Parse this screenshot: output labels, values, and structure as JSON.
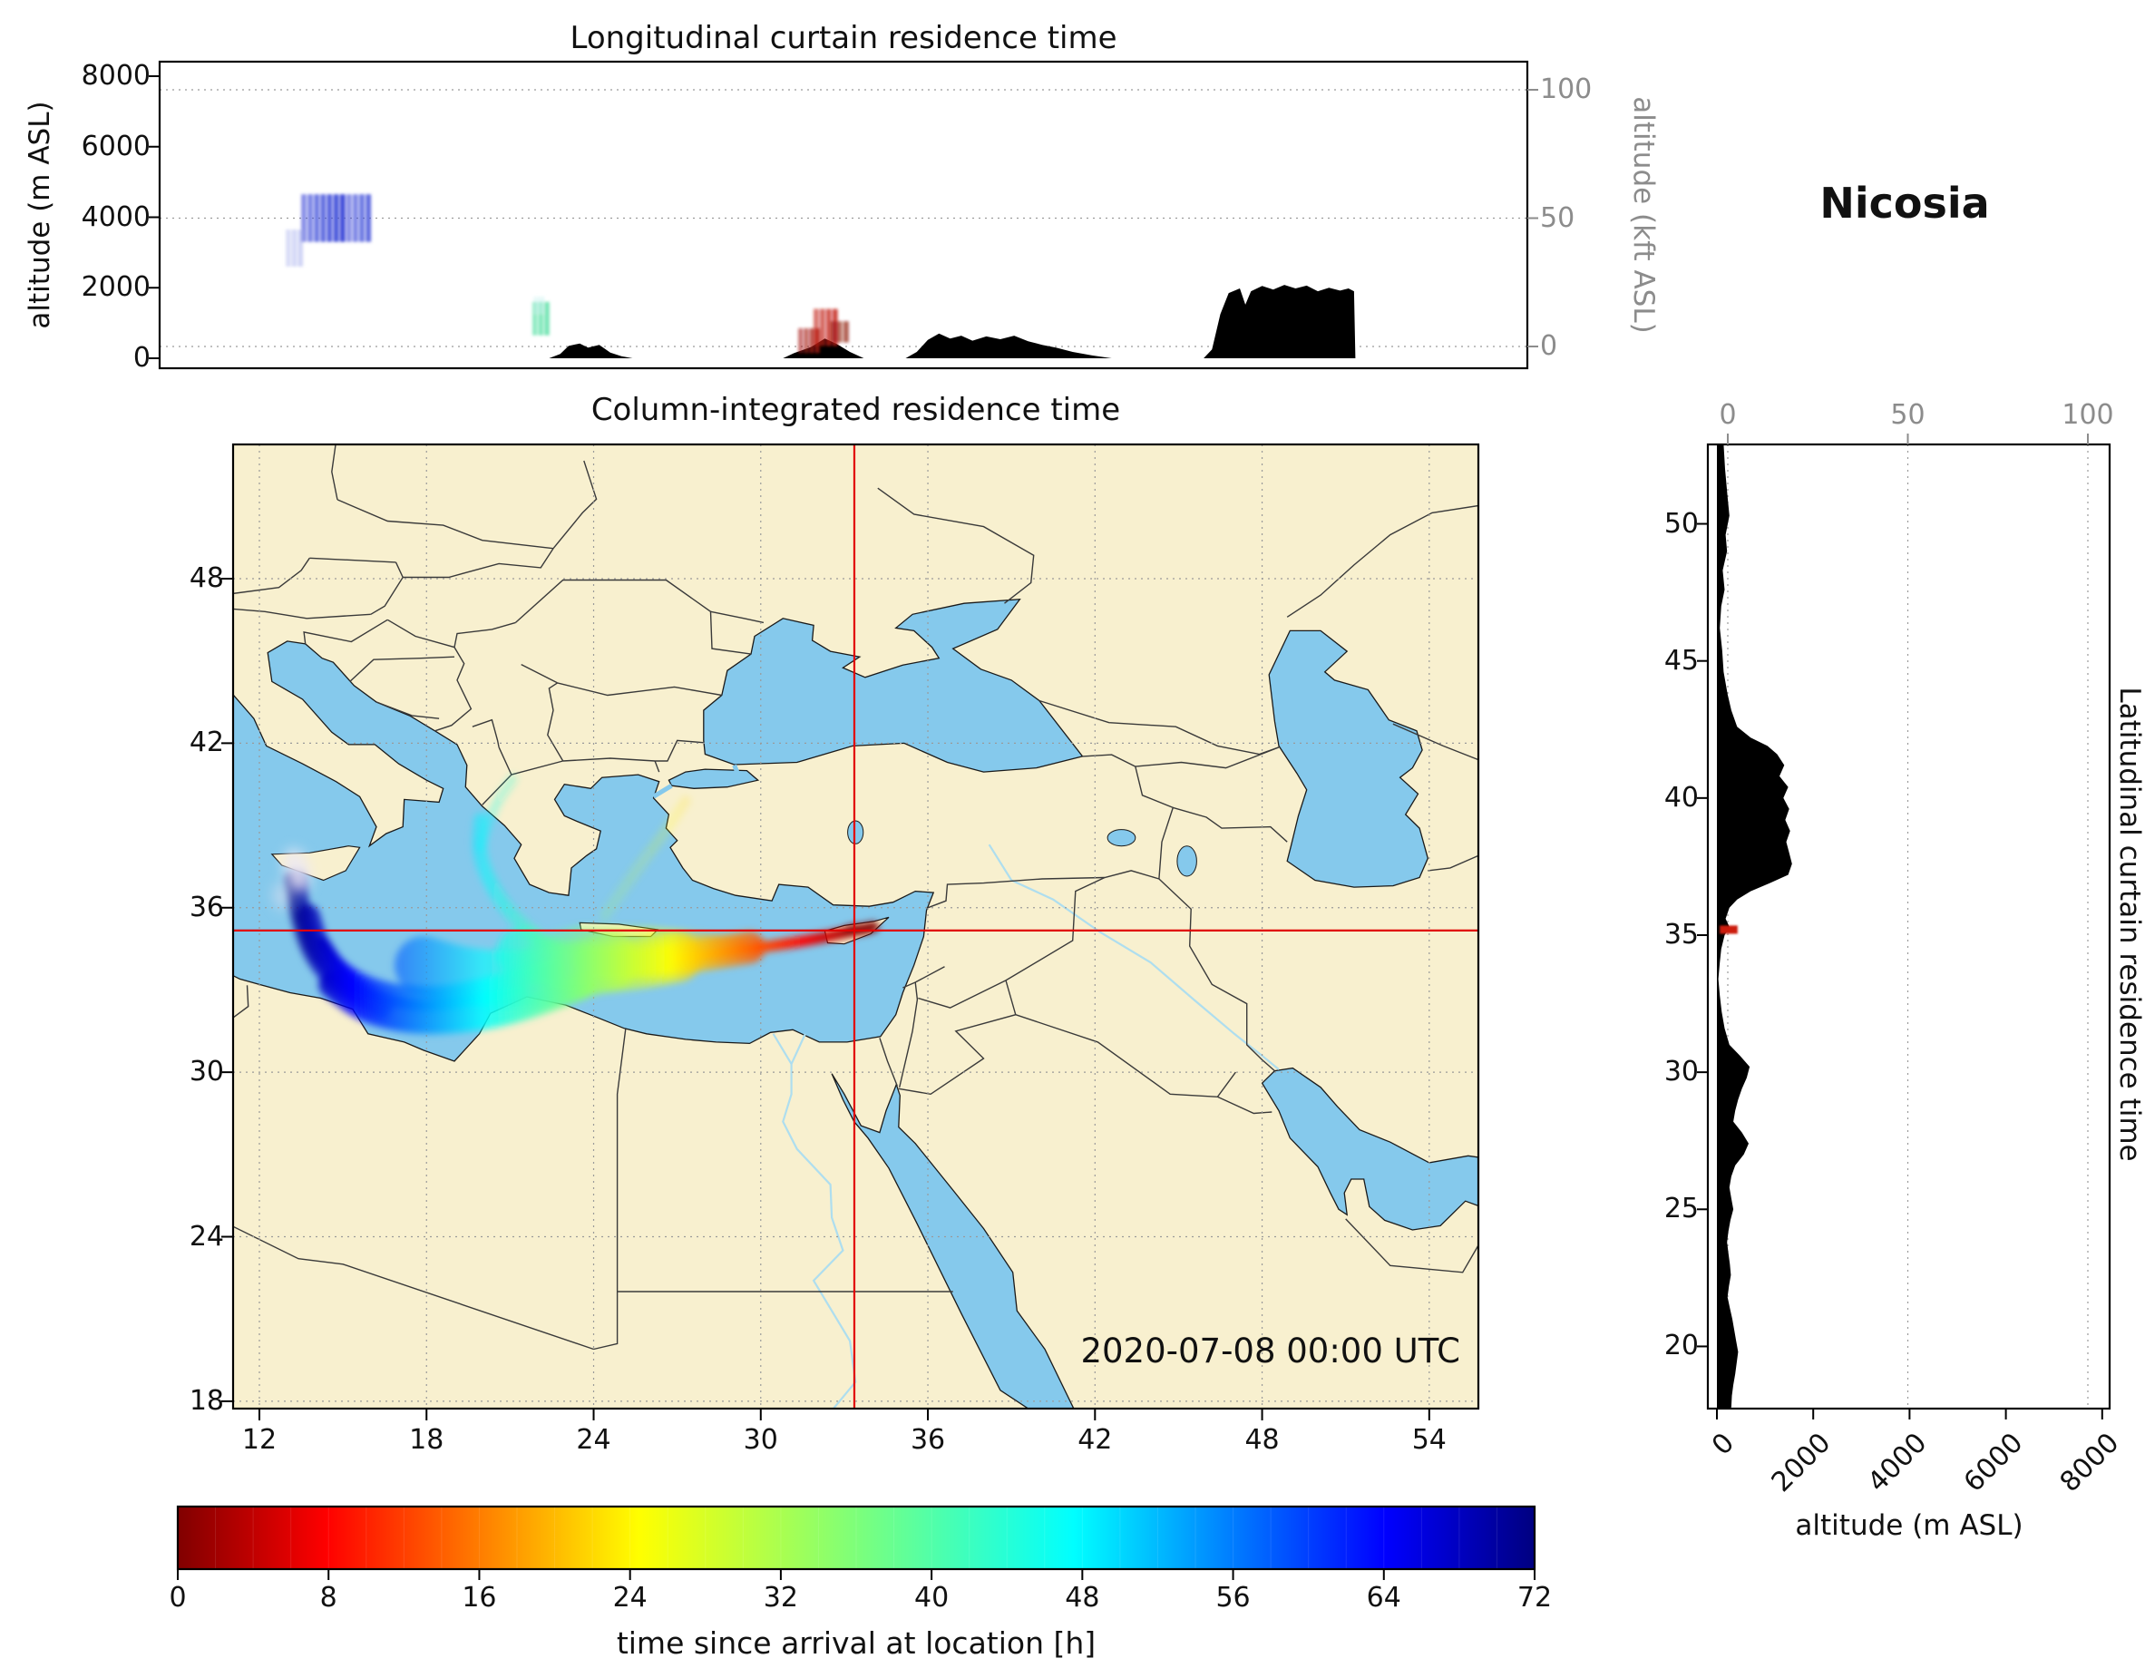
{
  "figure": {
    "station": "Nicosia",
    "timestamp": "2020-07-08 00:00 UTC"
  },
  "panels": {
    "longitudinal": {
      "title": "Longitudinal curtain residence time",
      "ylabel_left": "altitude (m ASL)",
      "ylabel_right": "altitude (kft ASL)",
      "yticks_left": [
        0,
        2000,
        4000,
        6000,
        8000
      ],
      "yticks_right": [
        0,
        50,
        100
      ]
    },
    "map": {
      "title": "Column-integrated residence time",
      "xticks": [
        12,
        18,
        24,
        30,
        36,
        42,
        48,
        54
      ],
      "yticks": [
        18,
        24,
        30,
        36,
        42,
        48
      ]
    },
    "latitudinal": {
      "title": "Latitudinal curtain residence time",
      "xlabel_bottom": "altitude (m ASL)",
      "xticks_top": [
        0,
        50,
        100
      ],
      "xticks_bottom": [
        0,
        2000,
        4000,
        6000,
        8000
      ],
      "yticks": [
        20,
        25,
        30,
        35,
        40,
        45,
        50
      ]
    },
    "colorbar": {
      "label": "time since arrival at location [h]",
      "ticks": [
        0,
        8,
        16,
        24,
        32,
        40,
        48,
        56,
        64,
        72
      ]
    }
  },
  "chart_data": [
    {
      "type": "heatmap",
      "name": "longitudinal_curtain",
      "title": "Longitudinal curtain residence time",
      "x_axis": {
        "quantity": "longitude_deg_east",
        "range": [
          8.4,
          57.5
        ]
      },
      "y_axis_left": {
        "label": "altitude (m ASL)",
        "ticks": [
          0,
          2000,
          4000,
          6000,
          8000
        ]
      },
      "y_axis_right": {
        "label": "altitude (kft ASL)",
        "ticks": [
          0,
          50,
          100
        ]
      },
      "terrain_profile": [
        [
          8.4,
          0
        ],
        [
          22.4,
          0
        ],
        [
          22.8,
          120
        ],
        [
          23.1,
          350
        ],
        [
          23.5,
          420
        ],
        [
          23.8,
          300
        ],
        [
          24.2,
          380
        ],
        [
          24.6,
          160
        ],
        [
          25.0,
          60
        ],
        [
          25.4,
          0
        ],
        [
          30.8,
          0
        ],
        [
          31.2,
          150
        ],
        [
          31.8,
          320
        ],
        [
          32.3,
          560
        ],
        [
          32.7,
          420
        ],
        [
          33.2,
          180
        ],
        [
          33.7,
          0
        ],
        [
          35.2,
          0
        ],
        [
          35.6,
          180
        ],
        [
          36.0,
          520
        ],
        [
          36.4,
          700
        ],
        [
          36.8,
          560
        ],
        [
          37.2,
          640
        ],
        [
          37.6,
          500
        ],
        [
          38.1,
          620
        ],
        [
          38.6,
          540
        ],
        [
          39.1,
          640
        ],
        [
          39.6,
          480
        ],
        [
          40.1,
          380
        ],
        [
          40.6,
          300
        ],
        [
          41.2,
          180
        ],
        [
          41.9,
          80
        ],
        [
          42.6,
          0
        ],
        [
          45.9,
          0
        ],
        [
          46.2,
          250
        ],
        [
          46.5,
          1250
        ],
        [
          46.8,
          1850
        ],
        [
          47.2,
          1980
        ],
        [
          47.4,
          1520
        ],
        [
          47.6,
          1900
        ],
        [
          48.0,
          2050
        ],
        [
          48.4,
          1950
        ],
        [
          48.8,
          2080
        ],
        [
          49.2,
          1980
        ],
        [
          49.6,
          2060
        ],
        [
          50.0,
          1900
        ],
        [
          50.4,
          2000
        ],
        [
          50.8,
          1920
        ],
        [
          51.1,
          1980
        ],
        [
          51.3,
          1900
        ],
        [
          51.35,
          0
        ],
        [
          57.5,
          0
        ]
      ],
      "residence_patches": [
        {
          "lon": [
            13.5,
            16.05
          ],
          "alt_m": [
            3300,
            4650
          ],
          "time_since_arrival_h": 66,
          "color": "#3f4cd9",
          "opacity": 1
        },
        {
          "lon": [
            12.95,
            13.6
          ],
          "alt_m": [
            2600,
            3650
          ],
          "time_since_arrival_h": 71,
          "color": "#97a0e8",
          "opacity": 0.6
        },
        {
          "lon": [
            21.8,
            22.45
          ],
          "alt_m": [
            650,
            1600
          ],
          "time_since_arrival_h": 44,
          "color": "#4ade9e",
          "opacity": 1
        },
        {
          "lon": [
            21.85,
            22.25
          ],
          "alt_m": [
            1250,
            1750
          ],
          "time_since_arrival_h": 40,
          "color": "#c9f2ef",
          "opacity": 0.75
        },
        {
          "lon": [
            31.35,
            32.15
          ],
          "alt_m": [
            150,
            850
          ],
          "time_since_arrival_h": 2,
          "color": "#a7170b",
          "opacity": 1
        },
        {
          "lon": [
            31.9,
            32.8
          ],
          "alt_m": [
            350,
            1400
          ],
          "time_since_arrival_h": 4,
          "color": "#c11b0c",
          "opacity": 1
        },
        {
          "lon": [
            32.5,
            33.2
          ],
          "alt_m": [
            450,
            1050
          ],
          "time_since_arrival_h": 1,
          "color": "#8c0f06",
          "opacity": 0.9
        }
      ]
    },
    {
      "type": "map",
      "name": "column_integrated",
      "title": "Column-integrated residence time",
      "timestamp": "2020-07-08 00:00 UTC",
      "lon_range": [
        11.06,
        55.76
      ],
      "lat_range": [
        17.73,
        52.9
      ],
      "lon_ticks": [
        12,
        18,
        24,
        30,
        36,
        42,
        48,
        54
      ],
      "lat_ticks": [
        18,
        24,
        30,
        36,
        42,
        48
      ],
      "receptor": {
        "name": "Nicosia",
        "lon": 33.36,
        "lat": 35.17
      },
      "plume": {
        "gradient_lon_time": {
          "lon_at_0h": 33.8,
          "lon_at_72h": 13.0
        },
        "body_polygon": [
          [
            29.5,
            34.9
          ],
          [
            26.0,
            35.3
          ],
          [
            23.5,
            35.35
          ],
          [
            21.8,
            34.9
          ],
          [
            21.2,
            33.9
          ],
          [
            22.5,
            33.1
          ],
          [
            25.0,
            33.3
          ],
          [
            27.5,
            33.9
          ],
          [
            29.5,
            34.4
          ]
        ],
        "filaments": [
          {
            "points": [
              [
                34.05,
                35.3
              ],
              [
                33.3,
                35.15
              ],
              [
                32.2,
                34.9
              ],
              [
                31.0,
                34.7
              ],
              [
                29.6,
                34.5
              ],
              [
                28.2,
                34.3
              ],
              [
                27.0,
                34.15
              ]
            ],
            "width_deg": 0.38,
            "opacity": 1
          },
          {
            "points": [
              [
                29.6,
                34.55
              ],
              [
                28.0,
                34.3
              ],
              [
                26.4,
                34.05
              ],
              [
                25.0,
                33.95
              ],
              [
                23.8,
                34.05
              ]
            ],
            "width_deg": 1.15,
            "opacity": 0.8
          },
          {
            "points": [
              [
                27.0,
                34.2
              ],
              [
                25.4,
                33.9
              ],
              [
                23.8,
                33.75
              ],
              [
                22.4,
                33.95
              ],
              [
                21.4,
                34.35
              ]
            ],
            "width_deg": 1.8,
            "opacity": 0.65
          },
          {
            "points": [
              [
                24.6,
                34.05
              ],
              [
                23.0,
                33.6
              ],
              [
                21.2,
                33.35
              ],
              [
                19.4,
                33.45
              ],
              [
                17.9,
                33.9
              ]
            ],
            "width_deg": 2.1,
            "opacity": 0.6
          },
          {
            "points": [
              [
                23.6,
                33.15
              ],
              [
                21.6,
                32.35
              ],
              [
                19.4,
                31.9
              ],
              [
                17.4,
                31.85
              ],
              [
                15.7,
                32.3
              ],
              [
                14.6,
                33.2
              ]
            ],
            "width_deg": 0.95,
            "opacity": 0.85
          },
          {
            "points": [
              [
                22.6,
                33.75
              ],
              [
                20.2,
                32.95
              ],
              [
                17.7,
                32.6
              ],
              [
                15.5,
                33.1
              ],
              [
                14.15,
                34.3
              ],
              [
                13.75,
                35.7
              ]
            ],
            "width_deg": 0.85,
            "opacity": 0.8
          },
          {
            "points": [
              [
                16.4,
                32.35
              ],
              [
                14.9,
                33.1
              ],
              [
                13.9,
                34.3
              ],
              [
                13.45,
                35.8
              ],
              [
                13.3,
                37.0
              ]
            ],
            "width_deg": 0.75,
            "opacity": 0.75
          },
          {
            "points": [
              [
                22.8,
                34.35
              ],
              [
                21.4,
                35.3
              ],
              [
                20.4,
                36.6
              ],
              [
                19.85,
                38.0
              ],
              [
                19.95,
                39.2
              ]
            ],
            "width_deg": 0.5,
            "opacity": 0.5
          },
          {
            "points": [
              [
                19.95,
                38.2
              ],
              [
                20.35,
                39.6
              ],
              [
                21.1,
                40.7
              ]
            ],
            "width_deg": 0.32,
            "opacity": 0.3
          },
          {
            "points": [
              [
                24.4,
                35.7
              ],
              [
                25.4,
                37.2
              ],
              [
                26.6,
                38.8
              ],
              [
                27.3,
                39.9
              ]
            ],
            "width_deg": 0.38,
            "opacity": 0.18
          },
          {
            "points": [
              [
                21.4,
                33.0
              ],
              [
                19.2,
                32.45
              ],
              [
                17.0,
                32.45
              ],
              [
                15.25,
                33.3
              ],
              [
                14.3,
                34.75
              ]
            ],
            "width_deg": 0.42,
            "opacity": 0.9
          }
        ],
        "overflow_blobs": [
          {
            "lon": 13.35,
            "lat": 37.35,
            "rx": 0.45,
            "ry": 0.8,
            "rot": -15,
            "color": "#ece9f5",
            "opacity": 0.85
          },
          {
            "lon": 12.8,
            "lat": 36.4,
            "rx": 0.3,
            "ry": 0.5,
            "rot": -10,
            "color": "#e4e0f0",
            "opacity": 0.55
          }
        ],
        "source_blob": {
          "lon": 33.5,
          "lat": 35.2,
          "rx": 0.55,
          "ry": 0.2,
          "color": "#8b0000"
        }
      }
    },
    {
      "type": "heatmap",
      "name": "latitudinal_curtain",
      "title": "Latitudinal curtain residence time",
      "x_axis_bottom": {
        "label": "altitude (m ASL)",
        "ticks": [
          0,
          2000,
          4000,
          6000,
          8000
        ]
      },
      "x_axis_top": {
        "ticks": [
          0,
          50,
          100
        ]
      },
      "y_axis": {
        "quantity": "latitude_deg_north",
        "ticks": [
          20,
          25,
          30,
          35,
          40,
          45,
          50
        ]
      },
      "terrain_profile": [
        [
          52.9,
          140
        ],
        [
          52.0,
          170
        ],
        [
          51.0,
          220
        ],
        [
          50.3,
          260
        ],
        [
          49.6,
          180
        ],
        [
          49.0,
          210
        ],
        [
          48.3,
          120
        ],
        [
          47.6,
          160
        ],
        [
          47.0,
          90
        ],
        [
          46.2,
          60
        ],
        [
          45.4,
          110
        ],
        [
          44.6,
          140
        ],
        [
          43.8,
          220
        ],
        [
          43.2,
          300
        ],
        [
          42.6,
          420
        ],
        [
          42.2,
          700
        ],
        [
          41.9,
          1050
        ],
        [
          41.6,
          1250
        ],
        [
          41.2,
          1400
        ],
        [
          40.8,
          1300
        ],
        [
          40.4,
          1480
        ],
        [
          40.0,
          1380
        ],
        [
          39.6,
          1500
        ],
        [
          39.2,
          1420
        ],
        [
          38.8,
          1520
        ],
        [
          38.4,
          1440
        ],
        [
          38.0,
          1500
        ],
        [
          37.6,
          1560
        ],
        [
          37.2,
          1480
        ],
        [
          36.9,
          1100
        ],
        [
          36.6,
          700
        ],
        [
          36.3,
          420
        ],
        [
          36.0,
          260
        ],
        [
          35.6,
          180
        ],
        [
          35.3,
          260
        ],
        [
          35.0,
          160
        ],
        [
          34.5,
          90
        ],
        [
          34.0,
          60
        ],
        [
          33.4,
          30
        ],
        [
          32.8,
          60
        ],
        [
          32.2,
          100
        ],
        [
          31.6,
          160
        ],
        [
          31.0,
          260
        ],
        [
          30.6,
          480
        ],
        [
          30.2,
          680
        ],
        [
          29.8,
          620
        ],
        [
          29.4,
          520
        ],
        [
          29.0,
          440
        ],
        [
          28.6,
          380
        ],
        [
          28.2,
          340
        ],
        [
          27.8,
          520
        ],
        [
          27.4,
          660
        ],
        [
          27.0,
          560
        ],
        [
          26.6,
          380
        ],
        [
          26.2,
          300
        ],
        [
          25.8,
          260
        ],
        [
          25.4,
          300
        ],
        [
          25.0,
          340
        ],
        [
          24.6,
          280
        ],
        [
          24.2,
          240
        ],
        [
          23.8,
          210
        ],
        [
          23.4,
          240
        ],
        [
          23.0,
          270
        ],
        [
          22.6,
          290
        ],
        [
          22.2,
          250
        ],
        [
          21.8,
          220
        ],
        [
          21.4,
          270
        ],
        [
          21.0,
          320
        ],
        [
          20.6,
          360
        ],
        [
          20.2,
          400
        ],
        [
          19.8,
          440
        ],
        [
          19.4,
          410
        ],
        [
          19.0,
          380
        ],
        [
          18.6,
          340
        ],
        [
          18.2,
          310
        ],
        [
          17.8,
          300
        ],
        [
          17.73,
          290
        ]
      ],
      "residence_patches": [
        {
          "lat": [
            35.05,
            35.35
          ],
          "alt_m": [
            60,
            430
          ],
          "time_since_arrival_h": 1,
          "color": "#cc1e0e",
          "opacity": 1
        }
      ]
    },
    {
      "type": "colorbar",
      "name": "colorbar",
      "label": "time since arrival at location [h]",
      "range": [
        0,
        72
      ],
      "ticks": [
        0,
        8,
        16,
        24,
        32,
        40,
        48,
        56,
        64,
        72
      ],
      "stops": [
        [
          0,
          "#800000"
        ],
        [
          0.11,
          "#ff0000"
        ],
        [
          0.34,
          "#ffff00"
        ],
        [
          0.5,
          "#7dff7a"
        ],
        [
          0.66,
          "#00ffff"
        ],
        [
          0.89,
          "#0000ff"
        ],
        [
          1,
          "#000080"
        ]
      ]
    }
  ]
}
